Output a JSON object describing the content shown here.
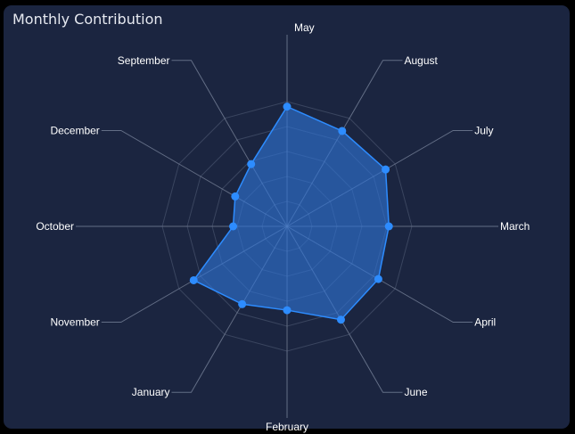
{
  "colors": {
    "panel": "#1b2540",
    "area": "#2f74d6",
    "point": "#2d8cff",
    "grid": "#3a455f",
    "spoke": "#7d879c",
    "leader": "#636e86",
    "label": "#ffffff"
  },
  "chart_data": {
    "type": "radar",
    "title": "Monthly Contribution",
    "categories": [
      "May",
      "August",
      "July",
      "March",
      "April",
      "June",
      "February",
      "January",
      "November",
      "October",
      "December",
      "September"
    ],
    "values": [
      100,
      92,
      95,
      85,
      88,
      90,
      70,
      75,
      90,
      45,
      50,
      60
    ],
    "rmax": 160,
    "grid_levels": 5,
    "grid": true,
    "legend": "none"
  }
}
